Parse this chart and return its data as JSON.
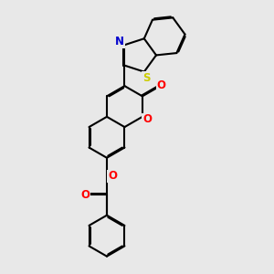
{
  "bg_color": "#e8e8e8",
  "bond_color": "#000000",
  "bond_lw": 1.5,
  "dbo": 0.055,
  "atom_colors": {
    "O": "#ff0000",
    "N": "#0000cc",
    "S": "#cccc00"
  },
  "font_size": 8.5,
  "fig_bg": "#e8e8e8",
  "bl": 1.0
}
